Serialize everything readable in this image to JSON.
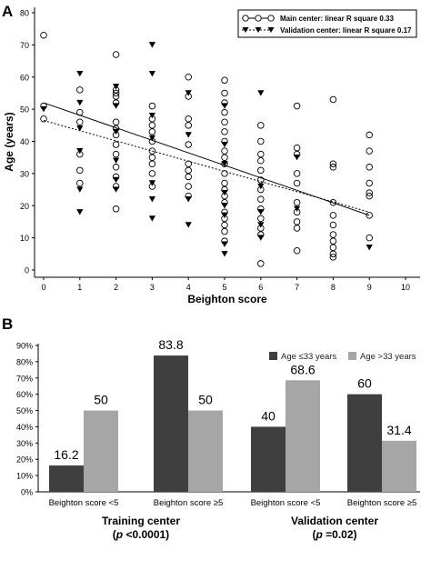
{
  "panel_a": {
    "label": "A",
    "ylabel": "Age (years)",
    "xlabel": "Beighton score",
    "xticks": [
      "0",
      "1",
      "2",
      "3",
      "4",
      "5",
      "6",
      "7",
      "8",
      "9",
      "10"
    ],
    "yticks": [
      "0",
      "10",
      "20",
      "30",
      "40",
      "50",
      "60",
      "70",
      "80"
    ],
    "legend": [
      {
        "text": "Main center: linear R square 0.33",
        "marker": "open-circle",
        "line": "solid"
      },
      {
        "text": "Validation center: linear R square 0.17",
        "marker": "filled-triangle-down",
        "line": "dotted"
      }
    ]
  },
  "panel_b": {
    "label": "B",
    "yticks": [
      "0%",
      "10%",
      "20%",
      "30%",
      "40%",
      "50%",
      "60%",
      "70%",
      "80%",
      "90%"
    ],
    "legend": [
      {
        "text": "Age ≤33 years",
        "color": "#3f3f3f"
      },
      {
        "text": "Age >33 years",
        "color": "#a6a6a6"
      }
    ],
    "categories": [
      "Beighton score <5",
      "Beighton score ≥5",
      "Beighton score <5",
      "Beighton score ≥5"
    ],
    "groups": [
      {
        "name": "Training center",
        "p_prefix": "(",
        "p_italic": "p",
        "p_rest": " <0.0001)"
      },
      {
        "name": "Validation center",
        "p_prefix": "(",
        "p_italic": "p",
        "p_rest": " =0.02)"
      }
    ]
  },
  "chart_data": [
    {
      "type": "scatter",
      "title": "",
      "xlabel": "Beighton score",
      "ylabel": "Age (years)",
      "xlim": [
        0,
        10
      ],
      "ylim": [
        0,
        80
      ],
      "grid": false,
      "legend_position": "top-right",
      "series": [
        {
          "name": "Main center: linear R square 0.33",
          "marker": "open-circle",
          "points": [
            [
              0,
              73
            ],
            [
              0,
              51
            ],
            [
              0,
              47
            ],
            [
              1,
              56
            ],
            [
              1,
              49
            ],
            [
              1,
              46
            ],
            [
              1,
              36
            ],
            [
              1,
              31
            ],
            [
              1,
              27
            ],
            [
              2,
              67
            ],
            [
              2,
              56
            ],
            [
              2,
              55
            ],
            [
              2,
              54
            ],
            [
              2,
              52
            ],
            [
              2,
              46
            ],
            [
              2,
              44
            ],
            [
              2,
              42
            ],
            [
              2,
              39
            ],
            [
              2,
              36
            ],
            [
              2,
              32
            ],
            [
              2,
              29
            ],
            [
              2,
              26
            ],
            [
              2,
              19
            ],
            [
              3,
              51
            ],
            [
              3,
              47
            ],
            [
              3,
              45
            ],
            [
              3,
              43
            ],
            [
              3,
              40
            ],
            [
              3,
              37
            ],
            [
              3,
              35
            ],
            [
              3,
              33
            ],
            [
              3,
              30
            ],
            [
              3,
              26
            ],
            [
              4,
              60
            ],
            [
              4,
              54
            ],
            [
              4,
              47
            ],
            [
              4,
              45
            ],
            [
              4,
              39
            ],
            [
              4,
              33
            ],
            [
              4,
              31
            ],
            [
              4,
              29
            ],
            [
              4,
              26
            ],
            [
              4,
              23
            ],
            [
              5,
              59
            ],
            [
              5,
              55
            ],
            [
              5,
              52
            ],
            [
              5,
              49
            ],
            [
              5,
              46
            ],
            [
              5,
              43
            ],
            [
              5,
              40
            ],
            [
              5,
              37
            ],
            [
              5,
              35
            ],
            [
              5,
              33
            ],
            [
              5,
              30
            ],
            [
              5,
              27
            ],
            [
              5,
              25
            ],
            [
              5,
              23
            ],
            [
              5,
              21
            ],
            [
              5,
              18
            ],
            [
              5,
              16
            ],
            [
              5,
              14
            ],
            [
              5,
              12
            ],
            [
              5,
              9
            ],
            [
              6,
              45
            ],
            [
              6,
              40
            ],
            [
              6,
              36
            ],
            [
              6,
              34
            ],
            [
              6,
              31
            ],
            [
              6,
              28
            ],
            [
              6,
              25
            ],
            [
              6,
              22
            ],
            [
              6,
              19
            ],
            [
              6,
              16
            ],
            [
              6,
              13
            ],
            [
              6,
              11
            ],
            [
              6,
              2
            ],
            [
              7,
              51
            ],
            [
              7,
              38
            ],
            [
              7,
              36
            ],
            [
              7,
              30
            ],
            [
              7,
              27
            ],
            [
              7,
              21
            ],
            [
              7,
              18
            ],
            [
              7,
              15
            ],
            [
              7,
              13
            ],
            [
              7,
              6
            ],
            [
              8,
              53
            ],
            [
              8,
              33
            ],
            [
              8,
              32
            ],
            [
              8,
              21
            ],
            [
              8,
              17
            ],
            [
              8,
              14
            ],
            [
              8,
              11
            ],
            [
              8,
              9
            ],
            [
              8,
              7
            ],
            [
              8,
              5
            ],
            [
              8,
              4
            ],
            [
              9,
              42
            ],
            [
              9,
              37
            ],
            [
              9,
              32
            ],
            [
              9,
              27
            ],
            [
              9,
              24
            ],
            [
              9,
              23
            ],
            [
              9,
              17
            ],
            [
              9,
              10
            ]
          ]
        },
        {
          "name": "Validation center: linear R square 0.17",
          "marker": "filled-triangle-down",
          "points": [
            [
              0,
              50
            ],
            [
              1,
              61
            ],
            [
              1,
              52
            ],
            [
              1,
              44
            ],
            [
              1,
              37
            ],
            [
              1,
              25
            ],
            [
              1,
              18
            ],
            [
              2,
              57
            ],
            [
              2,
              51
            ],
            [
              2,
              43
            ],
            [
              2,
              34
            ],
            [
              2,
              28
            ],
            [
              2,
              25
            ],
            [
              3,
              70
            ],
            [
              3,
              61
            ],
            [
              3,
              48
            ],
            [
              3,
              41
            ],
            [
              3,
              27
            ],
            [
              3,
              22
            ],
            [
              3,
              16
            ],
            [
              4,
              55
            ],
            [
              4,
              42
            ],
            [
              4,
              22
            ],
            [
              4,
              14
            ],
            [
              5,
              51
            ],
            [
              5,
              39
            ],
            [
              5,
              33
            ],
            [
              5,
              24
            ],
            [
              5,
              20
            ],
            [
              5,
              17
            ],
            [
              5,
              8
            ],
            [
              5,
              5
            ],
            [
              6,
              55
            ],
            [
              6,
              26
            ],
            [
              6,
              18
            ],
            [
              6,
              14
            ],
            [
              6,
              10
            ],
            [
              7,
              35
            ],
            [
              7,
              19
            ],
            [
              9,
              7
            ]
          ]
        }
      ],
      "fit_lines": [
        {
          "name": "Main center: linear R square 0.33",
          "style": "solid",
          "x": [
            0,
            9
          ],
          "y": [
            52,
            17
          ]
        },
        {
          "name": "Validation center: linear R square 0.17",
          "style": "dotted",
          "x": [
            0,
            9
          ],
          "y": [
            46.5,
            18
          ]
        }
      ]
    },
    {
      "type": "bar",
      "title": "",
      "xlabel": "",
      "ylabel": "",
      "ylim": [
        0,
        90
      ],
      "y_unit": "%",
      "categories": [
        "Beighton score <5",
        "Beighton score ≥5",
        "Beighton score <5",
        "Beighton score ≥5"
      ],
      "groups": [
        "Training center",
        "Validation center"
      ],
      "legend_position": "top-right",
      "series": [
        {
          "name": "Age ≤33 years",
          "values": [
            16.2,
            83.8,
            40,
            60
          ]
        },
        {
          "name": "Age >33 years",
          "values": [
            50,
            50,
            68.6,
            31.4
          ]
        }
      ],
      "data_labels": [
        [
          "16.2",
          "83.8",
          "40",
          "60"
        ],
        [
          "50",
          "50",
          "68.6",
          "31.4"
        ]
      ]
    }
  ]
}
